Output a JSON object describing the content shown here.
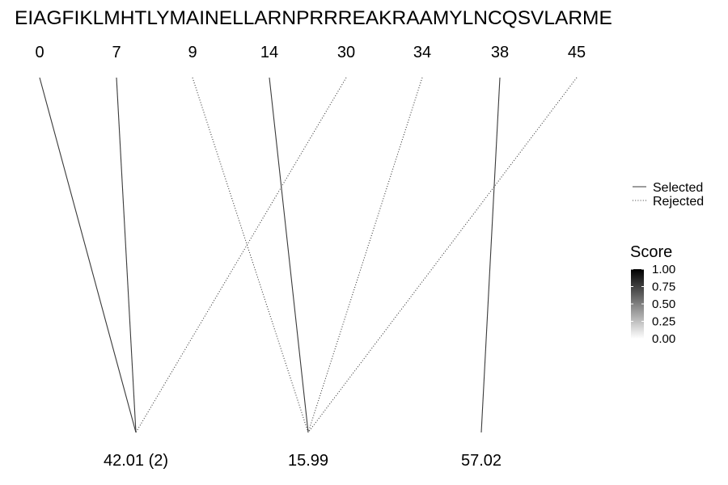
{
  "sequence": "EIAGFIKLMHTLYMAINELLARNPRRREAKRAAMYLNCQSVLARME",
  "cleavage_positions": [
    "0",
    "7",
    "9",
    "14",
    "30",
    "34",
    "38",
    "45"
  ],
  "masses": [
    "42.01 (2)",
    "15.99",
    "57.02"
  ],
  "connections": [
    {
      "from": 0,
      "to": 0,
      "status": "Selected"
    },
    {
      "from": 1,
      "to": 0,
      "status": "Selected"
    },
    {
      "from": 2,
      "to": 1,
      "status": "Rejected"
    },
    {
      "from": 3,
      "to": 1,
      "status": "Selected"
    },
    {
      "from": 4,
      "to": 0,
      "status": "Rejected"
    },
    {
      "from": 5,
      "to": 1,
      "status": "Rejected"
    },
    {
      "from": 6,
      "to": 2,
      "status": "Selected"
    },
    {
      "from": 7,
      "to": 1,
      "status": "Rejected"
    }
  ],
  "legend": {
    "items": [
      {
        "label": "Selected",
        "style": "solid"
      },
      {
        "label": "Rejected",
        "style": "dotted"
      }
    ]
  },
  "score_scale": {
    "title": "Score",
    "ticks": [
      "1.00",
      "0.75",
      "0.50",
      "0.25",
      "0.00"
    ],
    "color_high": "#000000",
    "color_low": "#ffffff"
  },
  "line_color": "#3a3a3a"
}
